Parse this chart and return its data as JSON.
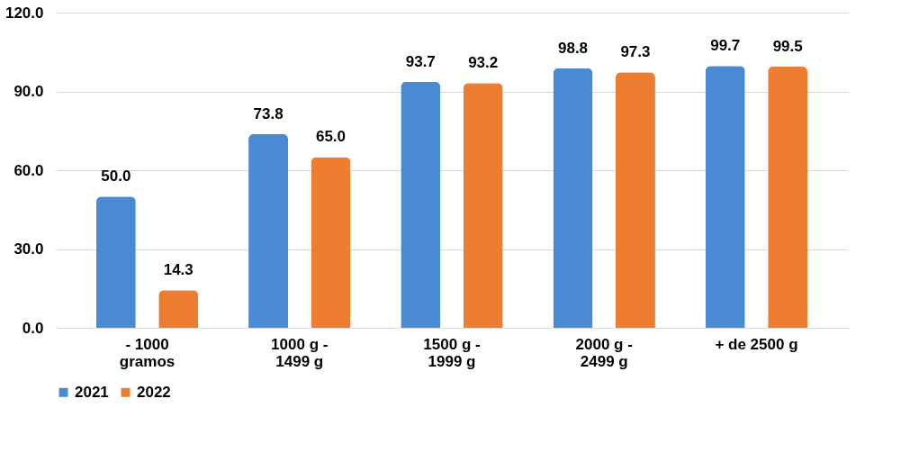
{
  "chart_data": {
    "type": "bar",
    "categories": [
      "- 1000 gramos",
      "1000 g - 1499 g",
      "1500 g - 1999 g",
      "2000 g - 2499 g",
      "+ de 2500 g"
    ],
    "series": [
      {
        "name": "2021",
        "color": "#4a8ad4",
        "values": [
          50.0,
          73.8,
          93.7,
          98.8,
          99.7
        ],
        "value_labels": [
          "50.0",
          "73.8",
          "93.7",
          "98.8",
          "99.7"
        ]
      },
      {
        "name": "2022",
        "color": "#ed7d31",
        "values": [
          14.3,
          65.0,
          93.2,
          97.3,
          99.5
        ],
        "value_labels": [
          "14.3",
          "65.0",
          "93.2",
          "97.3",
          "99.5"
        ]
      }
    ],
    "ylim": [
      0,
      120
    ],
    "yticks": [
      {
        "value": 0,
        "label": "0.0"
      },
      {
        "value": 30,
        "label": "30.0"
      },
      {
        "value": 60,
        "label": "60.0"
      },
      {
        "value": 90,
        "label": "90.0"
      },
      {
        "value": 120,
        "label": "120.0"
      }
    ],
    "grid": "y",
    "legend": "bottom"
  }
}
